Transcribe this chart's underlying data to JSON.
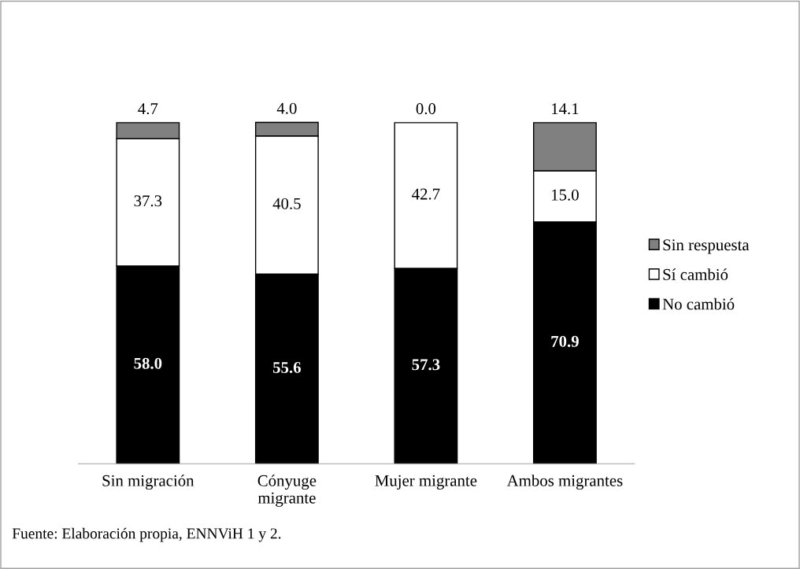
{
  "chart_data": {
    "type": "bar",
    "stacked": true,
    "legend": "right",
    "tick_labels": "x",
    "categories": [
      "Sin migración",
      "Cónyuge\nmigrante",
      "Mujer migrante",
      "Ambos migrantes"
    ],
    "series": [
      {
        "name": "No cambió",
        "color": "#000000",
        "values": [
          58.0,
          55.6,
          57.3,
          70.9
        ],
        "value_labels": [
          "58.0",
          "55.6",
          "57.3",
          "70.9"
        ]
      },
      {
        "name": "Sí cambió",
        "color": "#ffffff",
        "values": [
          37.3,
          40.5,
          42.7,
          15.0
        ],
        "value_labels": [
          "37.3",
          "40.5",
          "42.7",
          "15.0"
        ]
      },
      {
        "name": "Sin respuesta",
        "color": "#808080",
        "values": [
          4.7,
          4.0,
          0.0,
          14.1
        ],
        "value_labels": [
          "4.7",
          "4.0",
          "0.0",
          "14.1"
        ]
      }
    ],
    "annotations": [
      "Fuente: Elaboración propia, ENNViH 1 y 2."
    ]
  }
}
